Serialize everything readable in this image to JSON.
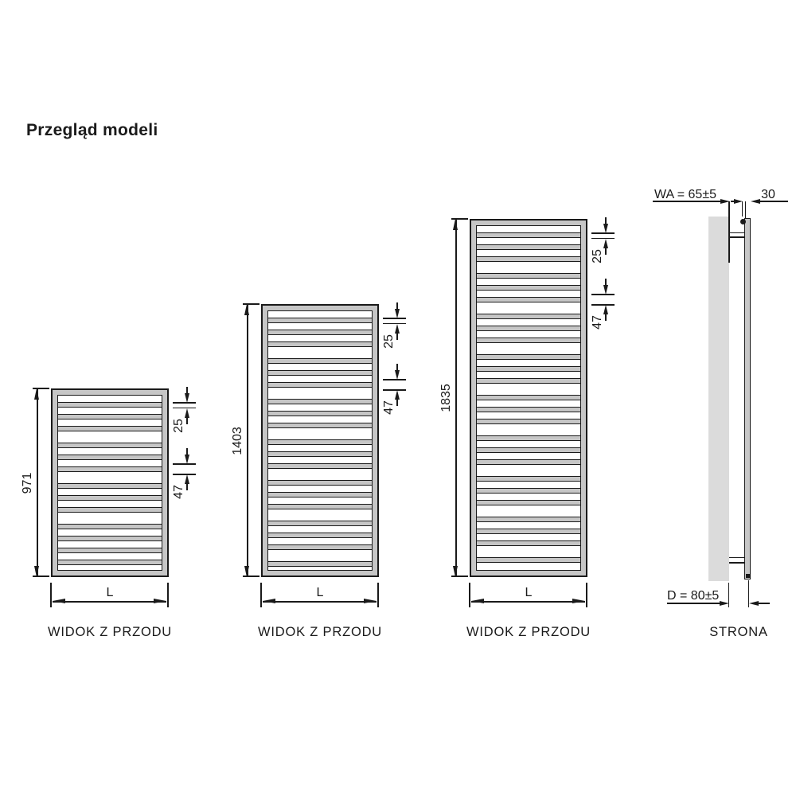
{
  "title": "Przegląd modeli",
  "radiators": [
    {
      "height_label": "971",
      "width_label": "L",
      "pitch_small_label": "25",
      "pitch_large_label": "47",
      "caption": "WIDOK Z PRZODU"
    },
    {
      "height_label": "1403",
      "width_label": "L",
      "pitch_small_label": "25",
      "pitch_large_label": "47",
      "caption": "WIDOK Z PRZODU"
    },
    {
      "height_label": "1835",
      "width_label": "L",
      "pitch_small_label": "25",
      "pitch_large_label": "47",
      "caption": "WIDOK Z PRZODU"
    }
  ],
  "side_view": {
    "wall_offset_label": "WA = 65±5",
    "depth_top_label": "30",
    "depth_bottom_label": "D = 80±5",
    "caption": "STRONA"
  },
  "colors": {
    "line": "#1a1a1a",
    "frame_fill": "#c6c6c6",
    "tube_fill": "#c6c6c6",
    "wall_fill": "#dbdbdb",
    "background": "#ffffff"
  }
}
